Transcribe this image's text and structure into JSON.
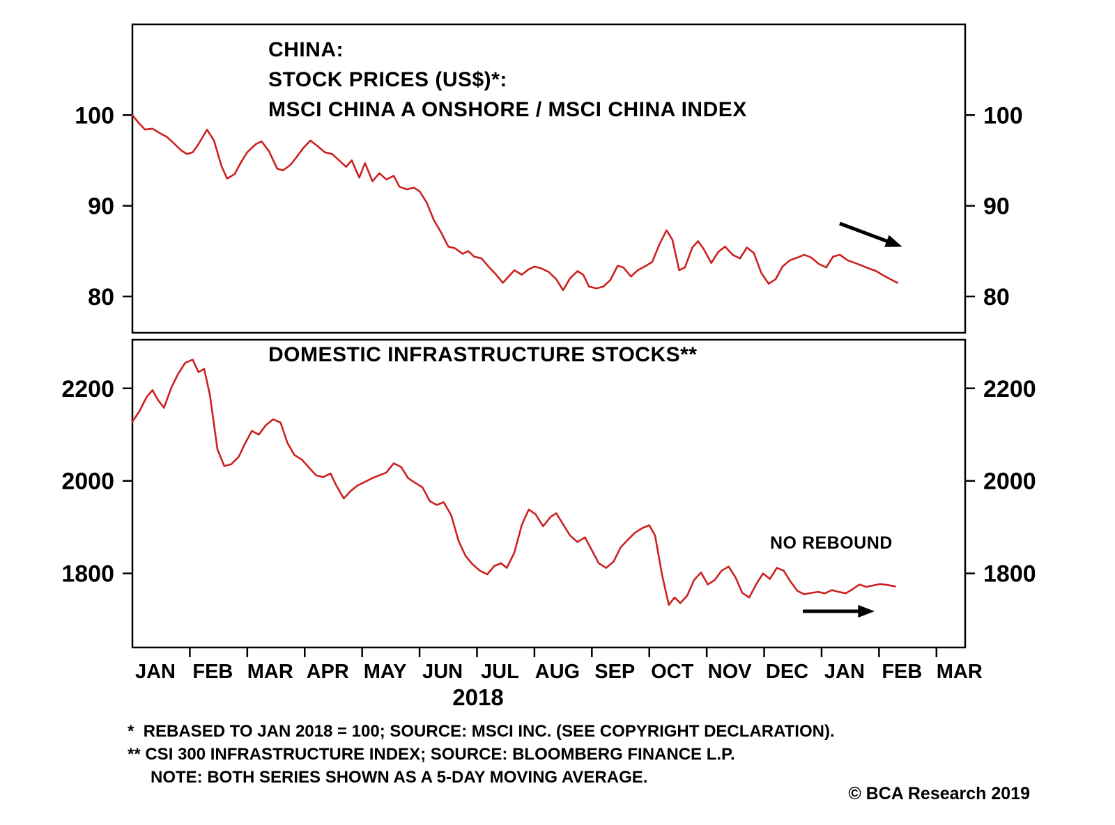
{
  "page": {
    "background": "#ffffff",
    "line_color": "#cc2020"
  },
  "chart_data": [
    {
      "type": "line",
      "panel": "top",
      "title_lines": [
        "CHINA:",
        "STOCK PRICES (US$)*:",
        "MSCI CHINA A ONSHORE / MSCI CHINA INDEX"
      ],
      "x_unit": "months since Jan 1 2018",
      "x_range_months": [
        0,
        14.5
      ],
      "ylim": [
        76,
        110
      ],
      "y_ticks": [
        100,
        90,
        80
      ],
      "grid": false,
      "legend": "none",
      "series": [
        {
          "id": "msci-ratio",
          "name": "MSCI CHINA A ONSHORE / MSCI CHINA INDEX (REBASED TO JAN 2018 = 100)",
          "color": "#cc2020",
          "points": [
            [
              0.0,
              100.0
            ],
            [
              0.1,
              99.2
            ],
            [
              0.22,
              98.4
            ],
            [
              0.35,
              98.5
            ],
            [
              0.48,
              98.0
            ],
            [
              0.6,
              97.6
            ],
            [
              0.72,
              96.9
            ],
            [
              0.85,
              96.1
            ],
            [
              0.95,
              95.7
            ],
            [
              1.05,
              95.9
            ],
            [
              1.15,
              96.8
            ],
            [
              1.3,
              98.4
            ],
            [
              1.42,
              97.2
            ],
            [
              1.55,
              94.4
            ],
            [
              1.65,
              93.0
            ],
            [
              1.78,
              93.5
            ],
            [
              1.9,
              94.9
            ],
            [
              2.0,
              95.9
            ],
            [
              2.15,
              96.8
            ],
            [
              2.25,
              97.1
            ],
            [
              2.38,
              96.0
            ],
            [
              2.52,
              94.1
            ],
            [
              2.62,
              93.9
            ],
            [
              2.75,
              94.5
            ],
            [
              2.85,
              95.3
            ],
            [
              2.98,
              96.4
            ],
            [
              3.1,
              97.2
            ],
            [
              3.22,
              96.6
            ],
            [
              3.35,
              95.9
            ],
            [
              3.48,
              95.7
            ],
            [
              3.6,
              95.0
            ],
            [
              3.72,
              94.3
            ],
            [
              3.82,
              95.0
            ],
            [
              3.95,
              93.1
            ],
            [
              4.05,
              94.7
            ],
            [
              4.18,
              92.7
            ],
            [
              4.3,
              93.6
            ],
            [
              4.42,
              92.9
            ],
            [
              4.55,
              93.3
            ],
            [
              4.65,
              92.1
            ],
            [
              4.78,
              91.8
            ],
            [
              4.9,
              92.0
            ],
            [
              5.0,
              91.6
            ],
            [
              5.12,
              90.4
            ],
            [
              5.25,
              88.4
            ],
            [
              5.38,
              87.0
            ],
            [
              5.5,
              85.5
            ],
            [
              5.62,
              85.3
            ],
            [
              5.75,
              84.7
            ],
            [
              5.85,
              85.0
            ],
            [
              5.95,
              84.4
            ],
            [
              6.08,
              84.2
            ],
            [
              6.2,
              83.3
            ],
            [
              6.32,
              82.5
            ],
            [
              6.45,
              81.5
            ],
            [
              6.55,
              82.2
            ],
            [
              6.65,
              82.9
            ],
            [
              6.78,
              82.4
            ],
            [
              6.9,
              83.0
            ],
            [
              7.0,
              83.3
            ],
            [
              7.12,
              83.1
            ],
            [
              7.25,
              82.7
            ],
            [
              7.38,
              81.9
            ],
            [
              7.5,
              80.7
            ],
            [
              7.62,
              82.0
            ],
            [
              7.75,
              82.8
            ],
            [
              7.85,
              82.4
            ],
            [
              7.95,
              81.1
            ],
            [
              8.08,
              80.9
            ],
            [
              8.2,
              81.1
            ],
            [
              8.32,
              81.8
            ],
            [
              8.45,
              83.4
            ],
            [
              8.55,
              83.2
            ],
            [
              8.68,
              82.2
            ],
            [
              8.8,
              82.9
            ],
            [
              8.92,
              83.3
            ],
            [
              9.05,
              83.8
            ],
            [
              9.18,
              85.8
            ],
            [
              9.3,
              87.3
            ],
            [
              9.4,
              86.3
            ],
            [
              9.52,
              82.9
            ],
            [
              9.62,
              83.2
            ],
            [
              9.75,
              85.4
            ],
            [
              9.85,
              86.1
            ],
            [
              9.95,
              85.2
            ],
            [
              10.08,
              83.7
            ],
            [
              10.2,
              84.9
            ],
            [
              10.32,
              85.5
            ],
            [
              10.45,
              84.6
            ],
            [
              10.58,
              84.2
            ],
            [
              10.7,
              85.4
            ],
            [
              10.82,
              84.8
            ],
            [
              10.95,
              82.6
            ],
            [
              11.08,
              81.4
            ],
            [
              11.2,
              81.9
            ],
            [
              11.32,
              83.3
            ],
            [
              11.45,
              84.0
            ],
            [
              11.58,
              84.3
            ],
            [
              11.7,
              84.6
            ],
            [
              11.82,
              84.3
            ],
            [
              11.95,
              83.6
            ],
            [
              12.08,
              83.2
            ],
            [
              12.2,
              84.4
            ],
            [
              12.32,
              84.6
            ],
            [
              12.45,
              84.0
            ],
            [
              12.58,
              83.7
            ],
            [
              12.7,
              83.4
            ],
            [
              12.82,
              83.1
            ],
            [
              12.95,
              82.8
            ],
            [
              13.08,
              82.3
            ],
            [
              13.2,
              81.9
            ],
            [
              13.32,
              81.5
            ]
          ]
        }
      ],
      "annotations": [
        {
          "type": "arrow",
          "direction": "down-right"
        }
      ]
    },
    {
      "type": "line",
      "panel": "bottom",
      "title": "DOMESTIC INFRASTRUCTURE STOCKS**",
      "x_unit": "months since Jan 1 2018",
      "x_range_months": [
        0,
        14.5
      ],
      "ylim": [
        1640,
        2305
      ],
      "y_ticks": [
        2200,
        2000,
        1800
      ],
      "grid": false,
      "legend": "none",
      "series": [
        {
          "id": "infrastructure",
          "name": "CSI 300 INFRASTRUCTURE INDEX (5-DAY MOVING AVERAGE)",
          "color": "#cc2020",
          "points": [
            [
              0.0,
              2128
            ],
            [
              0.12,
              2150
            ],
            [
              0.25,
              2182
            ],
            [
              0.35,
              2196
            ],
            [
              0.45,
              2174
            ],
            [
              0.55,
              2158
            ],
            [
              0.68,
              2202
            ],
            [
              0.8,
              2232
            ],
            [
              0.92,
              2255
            ],
            [
              1.05,
              2262
            ],
            [
              1.15,
              2235
            ],
            [
              1.25,
              2242
            ],
            [
              1.35,
              2185
            ],
            [
              1.48,
              2068
            ],
            [
              1.6,
              2032
            ],
            [
              1.72,
              2036
            ],
            [
              1.85,
              2052
            ],
            [
              1.95,
              2078
            ],
            [
              2.08,
              2108
            ],
            [
              2.2,
              2100
            ],
            [
              2.32,
              2120
            ],
            [
              2.45,
              2133
            ],
            [
              2.58,
              2126
            ],
            [
              2.7,
              2082
            ],
            [
              2.82,
              2056
            ],
            [
              2.95,
              2046
            ],
            [
              3.08,
              2028
            ],
            [
              3.2,
              2012
            ],
            [
              3.32,
              2008
            ],
            [
              3.45,
              2016
            ],
            [
              3.55,
              1990
            ],
            [
              3.68,
              1962
            ],
            [
              3.8,
              1978
            ],
            [
              3.92,
              1990
            ],
            [
              4.05,
              1998
            ],
            [
              4.18,
              2006
            ],
            [
              4.3,
              2012
            ],
            [
              4.42,
              2018
            ],
            [
              4.55,
              2038
            ],
            [
              4.68,
              2030
            ],
            [
              4.8,
              2006
            ],
            [
              4.92,
              1996
            ],
            [
              5.05,
              1986
            ],
            [
              5.18,
              1956
            ],
            [
              5.3,
              1948
            ],
            [
              5.42,
              1954
            ],
            [
              5.55,
              1926
            ],
            [
              5.68,
              1870
            ],
            [
              5.8,
              1838
            ],
            [
              5.92,
              1820
            ],
            [
              6.05,
              1806
            ],
            [
              6.18,
              1798
            ],
            [
              6.3,
              1816
            ],
            [
              6.42,
              1822
            ],
            [
              6.52,
              1812
            ],
            [
              6.65,
              1845
            ],
            [
              6.78,
              1905
            ],
            [
              6.9,
              1938
            ],
            [
              7.02,
              1928
            ],
            [
              7.15,
              1902
            ],
            [
              7.28,
              1922
            ],
            [
              7.38,
              1930
            ],
            [
              7.5,
              1906
            ],
            [
              7.62,
              1882
            ],
            [
              7.75,
              1868
            ],
            [
              7.88,
              1878
            ],
            [
              8.0,
              1850
            ],
            [
              8.12,
              1822
            ],
            [
              8.25,
              1812
            ],
            [
              8.38,
              1826
            ],
            [
              8.5,
              1856
            ],
            [
              8.62,
              1872
            ],
            [
              8.75,
              1888
            ],
            [
              8.88,
              1898
            ],
            [
              9.0,
              1904
            ],
            [
              9.1,
              1882
            ],
            [
              9.22,
              1798
            ],
            [
              9.34,
              1732
            ],
            [
              9.44,
              1748
            ],
            [
              9.54,
              1736
            ],
            [
              9.66,
              1752
            ],
            [
              9.78,
              1786
            ],
            [
              9.9,
              1802
            ],
            [
              10.02,
              1776
            ],
            [
              10.14,
              1786
            ],
            [
              10.26,
              1806
            ],
            [
              10.38,
              1815
            ],
            [
              10.5,
              1792
            ],
            [
              10.62,
              1758
            ],
            [
              10.74,
              1748
            ],
            [
              10.86,
              1776
            ],
            [
              10.98,
              1800
            ],
            [
              11.1,
              1788
            ],
            [
              11.22,
              1812
            ],
            [
              11.34,
              1806
            ],
            [
              11.46,
              1782
            ],
            [
              11.58,
              1762
            ],
            [
              11.7,
              1755
            ],
            [
              11.82,
              1758
            ],
            [
              11.94,
              1760
            ],
            [
              12.06,
              1757
            ],
            [
              12.18,
              1764
            ],
            [
              12.3,
              1760
            ],
            [
              12.42,
              1757
            ],
            [
              12.54,
              1766
            ],
            [
              12.66,
              1776
            ],
            [
              12.78,
              1771
            ],
            [
              12.9,
              1774
            ],
            [
              13.02,
              1777
            ],
            [
              13.15,
              1775
            ],
            [
              13.28,
              1772
            ]
          ]
        }
      ],
      "annotations": [
        {
          "type": "arrow",
          "direction": "right",
          "label": "NO REBOUND"
        }
      ]
    }
  ],
  "x_axis": {
    "month_labels": [
      "JAN",
      "FEB",
      "MAR",
      "APR",
      "MAY",
      "JUN",
      "JUL",
      "AUG",
      "SEP",
      "OCT",
      "NOV",
      "DEC",
      "JAN",
      "FEB",
      "MAR"
    ],
    "year_label": "2018"
  },
  "footnotes": {
    "line1": "*  REBASED TO JAN 2018 = 100; SOURCE: MSCI INC. (SEE COPYRIGHT DECLARATION).",
    "line2": "** CSI 300 INFRASTRUCTURE INDEX; SOURCE: BLOOMBERG FINANCE L.P.",
    "line3": "NOTE: BOTH SERIES SHOWN AS A 5-DAY MOVING AVERAGE."
  },
  "copyright": "© BCA Research 2019"
}
